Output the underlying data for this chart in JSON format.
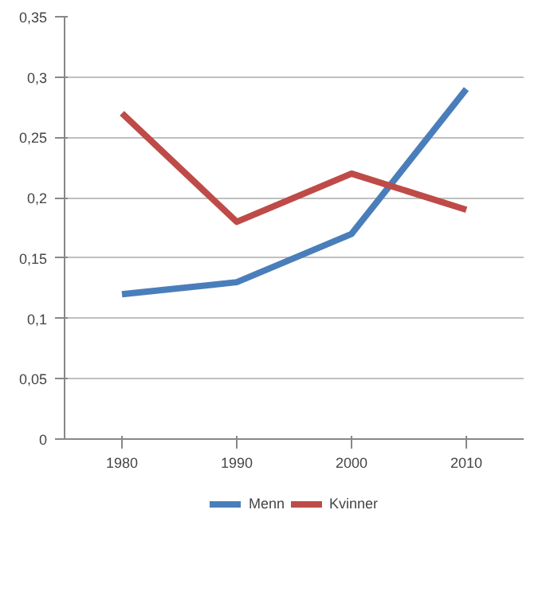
{
  "chart_data": {
    "type": "line",
    "categories": [
      "1980",
      "1990",
      "2000",
      "2010"
    ],
    "series": [
      {
        "name": "Menn",
        "color": "#4a7ebb",
        "values": [
          0.12,
          0.13,
          0.17,
          0.29
        ]
      },
      {
        "name": "Kvinner",
        "color": "#be4b48",
        "values": [
          0.27,
          0.18,
          0.22,
          0.19
        ]
      }
    ],
    "ylim": [
      0,
      0.35
    ],
    "yticks": [
      0,
      {
        "value": 0.05,
        "label": "0,05"
      },
      {
        "value": 0.1,
        "label": "0,1"
      },
      {
        "value": 0.15,
        "label": "0,15"
      },
      {
        "value": 0.2,
        "label": "0,2"
      },
      {
        "value": 0.25,
        "label": "0,25"
      },
      {
        "value": 0.3,
        "label": "0,3"
      },
      {
        "value": 0.35,
        "label": "0,35"
      }
    ],
    "grid": "y",
    "legend": "bottom",
    "line_style": "solid"
  }
}
